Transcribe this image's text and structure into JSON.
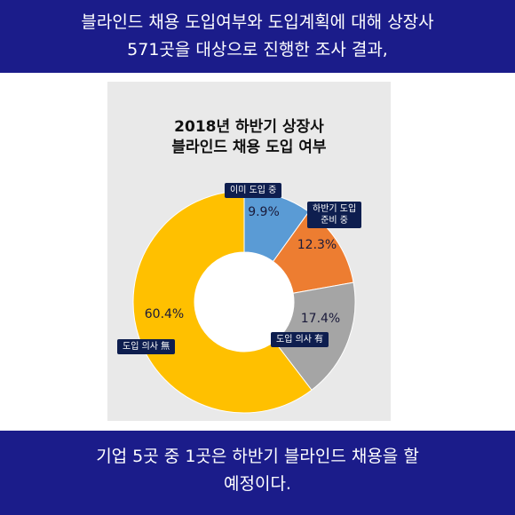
{
  "header": {
    "line1": "블라인드 채용 도입여부와 도입계획에 대해 상장사",
    "line2": "571곳을 대상으로 진행한 조사 결과,"
  },
  "footer": {
    "line1": "기업 5곳 중 1곳은 하반기 블라인드 채용을 할",
    "line2": "예정이다."
  },
  "colors": {
    "band": "#1b1c8a",
    "callout": "#0e1e4f"
  },
  "chart_data": {
    "type": "pie",
    "donut": true,
    "title_lines": [
      "2018년 하반기 상장사",
      "블라인드 채용 도입 여부"
    ],
    "slices": [
      {
        "label": "이미 도입 중",
        "value": 9.9,
        "value_label": "9.9%",
        "color": "#5a9bd5"
      },
      {
        "label_lines": [
          "하반기 도입",
          "준비 중"
        ],
        "value": 12.3,
        "value_label": "12.3%",
        "color": "#ed7d31"
      },
      {
        "label": "도입 의사 有",
        "value": 17.4,
        "value_label": "17.4%",
        "color": "#a5a5a5"
      },
      {
        "label": "도입 의사 無",
        "value": 60.4,
        "value_label": "60.4%",
        "color": "#ffc000"
      }
    ]
  }
}
